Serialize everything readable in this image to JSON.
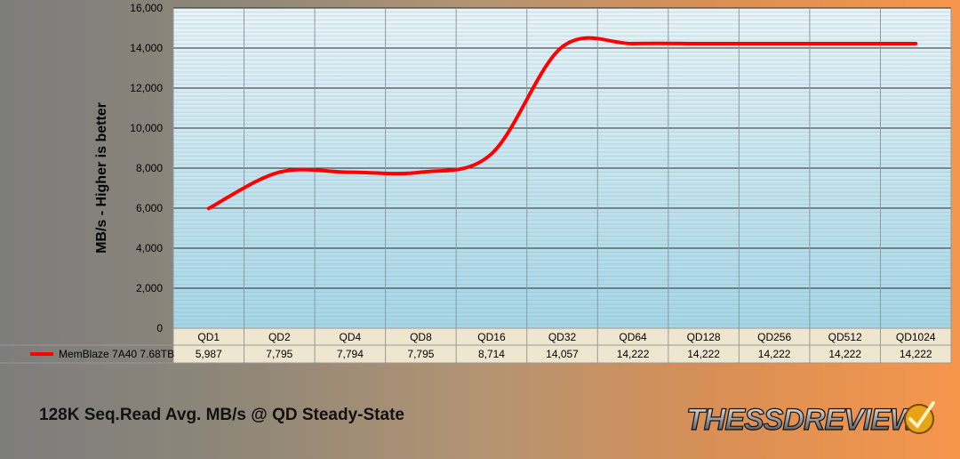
{
  "chart_data": {
    "type": "line",
    "title": "128K Seq.Read Avg. MB/s @ QD Steady-State",
    "ylabel": "MB/s - Higher is better",
    "xlabel": "",
    "categories": [
      "QD1",
      "QD2",
      "QD4",
      "QD8",
      "QD16",
      "QD32",
      "QD64",
      "QD128",
      "QD256",
      "QD512",
      "QD1024"
    ],
    "series": [
      {
        "name": "MemBlaze 7A40 7.68TB",
        "values": [
          5987,
          7795,
          7794,
          7795,
          8714,
          14057,
          14222,
          14222,
          14222,
          14222,
          14222
        ],
        "value_labels": [
          "5,987",
          "7,795",
          "7,794",
          "7,795",
          "8,714",
          "14,057",
          "14,222",
          "14,222",
          "14,222",
          "14,222",
          "14,222"
        ],
        "color": "#ff0000"
      }
    ],
    "ylim": [
      0,
      16000
    ],
    "yticks": [
      0,
      2000,
      4000,
      6000,
      8000,
      10000,
      12000,
      14000,
      16000
    ],
    "ytick_labels": [
      "0",
      "2,000",
      "4,000",
      "6,000",
      "8,000",
      "10,000",
      "12,000",
      "14,000",
      "16,000"
    ],
    "grid": true,
    "legend": "data-table-left",
    "colors": {
      "plot_top": "#e8f3f7",
      "plot_bottom": "#a6d6e6",
      "table_bg": "#efe6cf",
      "line": "#ff0000"
    }
  },
  "logo": {
    "text": "THESSDREVIEW"
  }
}
